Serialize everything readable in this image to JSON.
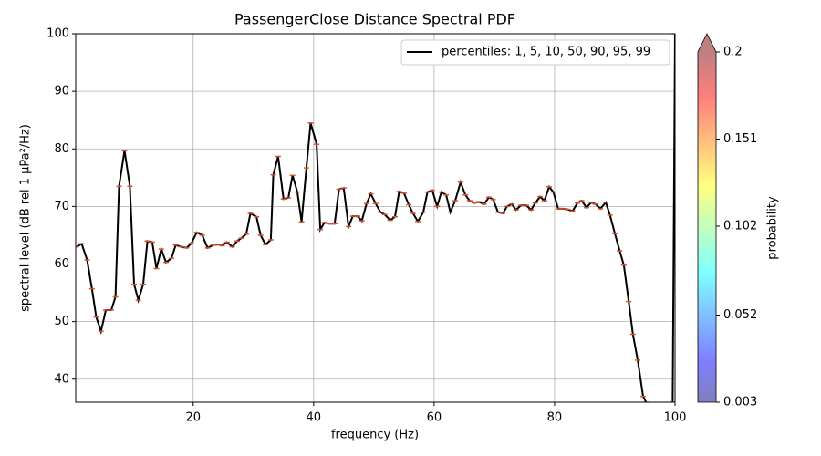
{
  "chart_data": {
    "type": "line",
    "title": "PassengerClose Distance Spectral PDF",
    "x_label": "frequency (Hz)",
    "y_label": "spectral level (dB rel 1 µPa²/Hz)",
    "xlim": [
      0.5,
      100
    ],
    "ylim": [
      36,
      100
    ],
    "xticks": [
      20,
      40,
      60,
      80,
      100
    ],
    "yticks": [
      40,
      50,
      60,
      70,
      80,
      90,
      100
    ],
    "grid": true,
    "legend_position": "upper right",
    "x": [
      0.6,
      1.5,
      2.4,
      3.2,
      3.9,
      4.7,
      5.5,
      6.4,
      7.1,
      7.7,
      8.6,
      9.5,
      10.2,
      10.9,
      11.7,
      12.4,
      13.2,
      13.9,
      14.7,
      15.5,
      16.4,
      17.1,
      18,
      18.9,
      19.7,
      20.6,
      21.5,
      22.4,
      23.3,
      24.2,
      24.8,
      25.6,
      26.5,
      27.3,
      28,
      28.8,
      29.5,
      30.5,
      31.2,
      32,
      32.9,
      33.3,
      34.1,
      35,
      35.8,
      36.5,
      37.3,
      38,
      38.8,
      39.5,
      40.5,
      41.1,
      41.8,
      42.6,
      43.5,
      44.2,
      45,
      45.8,
      46.5,
      47.3,
      48,
      48.8,
      49.5,
      50.3,
      51.1,
      51.8,
      52.7,
      53.5,
      54.2,
      55,
      55.8,
      56.5,
      57.3,
      58.2,
      58.9,
      59.7,
      60.5,
      61.2,
      62,
      62.7,
      63.5,
      64.4,
      65.2,
      65.9,
      66.7,
      67.4,
      68.3,
      69.1,
      69.8,
      70.6,
      71.4,
      72.1,
      72.9,
      73.6,
      74.4,
      75.3,
      76.1,
      76.8,
      77.6,
      78.3,
      79.1,
      79.8,
      80.6,
      81.4,
      82.1,
      83,
      83.8,
      84.5,
      85.3,
      86.1,
      86.8,
      87.6,
      88.5,
      89.2,
      90,
      90.8,
      91.5,
      92.3,
      93,
      93.8,
      94.7,
      95.2,
      95.5,
      99.6,
      100
    ],
    "series": [
      {
        "name": "percentiles: 1, 5, 10, 50, 90, 95, 99",
        "color": "#000000",
        "marker_color": "#d9502f",
        "values": [
          63,
          63.5,
          60.7,
          55.7,
          50.8,
          48.3,
          52,
          52,
          54.3,
          73.5,
          79.7,
          73.5,
          56.5,
          53.7,
          56.5,
          64,
          63.8,
          59.2,
          62.6,
          60.3,
          61,
          63.3,
          63,
          62.8,
          63.6,
          65.5,
          65,
          62.8,
          63.3,
          63.4,
          63.2,
          63.8,
          63,
          64,
          64.5,
          65.2,
          68.8,
          68.2,
          65,
          63.4,
          64.2,
          75.5,
          78.7,
          71.3,
          71.5,
          75.4,
          72.5,
          67.3,
          76.7,
          84.5,
          80.8,
          66,
          67.2,
          67,
          67,
          73,
          73.2,
          66.5,
          68.3,
          68.3,
          67.5,
          70.5,
          72.2,
          70.5,
          69,
          68.6,
          67.6,
          68.2,
          72.6,
          72.3,
          70.3,
          68.8,
          67.4,
          69,
          72.5,
          72.8,
          70,
          72.5,
          72,
          69,
          71,
          74.2,
          72,
          71,
          70.6,
          70.8,
          70.4,
          71.6,
          71.2,
          69,
          68.8,
          70,
          70.4,
          69.4,
          70.2,
          70.2,
          69.4,
          70.6,
          71.7,
          71,
          73.4,
          72.5,
          69.6,
          69.6,
          69.5,
          69.2,
          70.6,
          71,
          69.8,
          70.7,
          70.4,
          69.6,
          70.7,
          68.5,
          65.3,
          62.3,
          59.8,
          53.5,
          47.8,
          43.3,
          37,
          36,
          null,
          36,
          100
        ]
      }
    ],
    "colorbar": {
      "label": "probability",
      "colormap": "jet",
      "lim": [
        0.003,
        0.2
      ],
      "ticks": [
        0.003,
        0.052,
        0.102,
        0.151,
        0.2
      ]
    }
  }
}
